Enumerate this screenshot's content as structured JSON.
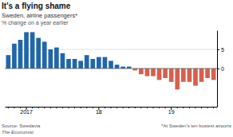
{
  "chart_data": {
    "type": "bar",
    "title": "It’s a flying shame",
    "subtitle": "Sweden, airline passengers*",
    "ylabel": "% change on a year earlier",
    "annotations": [
      "Source: Swedavia",
      "The Economist",
      "*At Sweden’s ten busiest airports"
    ],
    "categories": [
      null,
      null,
      null,
      "2017",
      null,
      null,
      null,
      null,
      null,
      null,
      null,
      null,
      null,
      null,
      null,
      "18",
      null,
      null,
      null,
      null,
      null,
      null,
      null,
      null,
      null,
      null,
      null,
      "19",
      null,
      null,
      null,
      null,
      null,
      null,
      null
    ],
    "values": [
      3.5,
      6.5,
      7.5,
      9.5,
      9.5,
      8.0,
      7.0,
      5.0,
      5.5,
      4.0,
      2.5,
      2.5,
      2.0,
      3.5,
      2.5,
      3.0,
      3.0,
      2.0,
      1.0,
      0.5,
      0.5,
      -0.5,
      -1.5,
      -2.0,
      -2.0,
      -3.0,
      -2.5,
      -3.5,
      -5.5,
      -3.5,
      -3.5,
      -4.5,
      -3.5,
      -2.5,
      -3.0
    ],
    "colors": [
      "#2166a8",
      "#2166a8",
      "#2166a8",
      "#2166a8",
      "#2166a8",
      "#2166a8",
      "#2166a8",
      "#2166a8",
      "#2166a8",
      "#2166a8",
      "#2166a8",
      "#2166a8",
      "#2166a8",
      "#2166a8",
      "#2166a8",
      "#2166a8",
      "#2166a8",
      "#2166a8",
      "#2166a8",
      "#2166a8",
      "#2166a8",
      "#d6604d",
      "#d6604d",
      "#d6604d",
      "#d6604d",
      "#d6604d",
      "#d6604d",
      "#d6604d",
      "#d6604d",
      "#d6604d",
      "#d6604d",
      "#d6604d",
      "#d6604d",
      "#d6604d",
      "#d6604d"
    ],
    "ylim": [
      -10,
      10
    ],
    "yticks": [
      0,
      5
    ],
    "grid": true
  }
}
